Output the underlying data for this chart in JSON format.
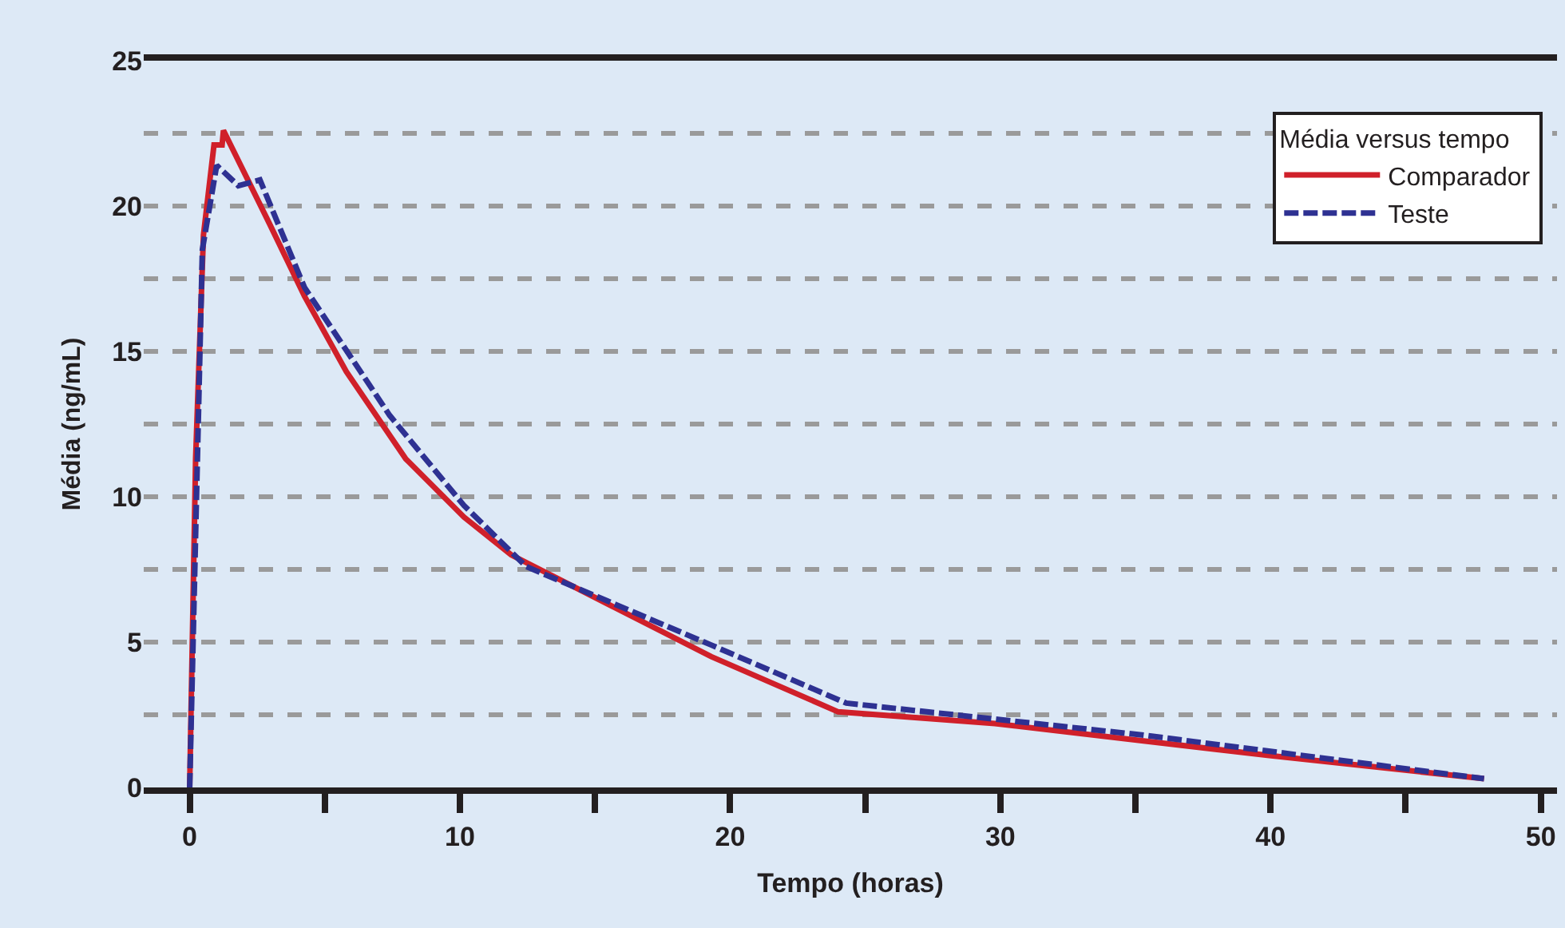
{
  "chart_data": {
    "type": "line",
    "xlabel": "Tempo (horas)",
    "ylabel": "Média (ng/mL)",
    "legend_title": "Média versus tempo",
    "legend": "top right",
    "grid": "y",
    "marker": "none",
    "xlim": [
      -1.7,
      50.6
    ],
    "ylim": [
      0,
      25
    ],
    "xticks": [
      0,
      {
        "value": 5,
        "label": null
      },
      10,
      {
        "value": 15,
        "label": null
      },
      20,
      {
        "value": 25,
        "label": null
      },
      30,
      {
        "value": 35,
        "label": null
      },
      40,
      {
        "value": 45,
        "label": null
      },
      50
    ],
    "yticks": [
      0,
      {
        "value": 2.5,
        "label": null
      },
      5,
      {
        "value": 7.5,
        "label": null
      },
      10,
      {
        "value": 12.5,
        "label": null
      },
      15,
      {
        "value": 17.5,
        "label": null
      },
      20,
      {
        "value": 22.5,
        "label": null
      },
      25
    ],
    "series": [
      {
        "name": "Comparador",
        "color": "#d0202a",
        "line_style": "solid",
        "x": [
          0,
          0.22,
          0.51,
          0.9,
          1.2,
          1.25,
          2.95,
          4.25,
          5.8,
          8.0,
          10.15,
          11.9,
          19.3,
          24.0,
          29.8,
          35.3,
          39.95,
          47.9
        ],
        "values": [
          0,
          11.3,
          19.0,
          22.1,
          22.1,
          22.6,
          19.4,
          16.9,
          14.3,
          11.3,
          9.3,
          8.0,
          4.5,
          2.6,
          2.2,
          1.6,
          1.1,
          0.3
        ]
      },
      {
        "name": "Teste",
        "color": "#2e3192",
        "line_style": "dashed",
        "x": [
          0,
          0.47,
          1.0,
          1.8,
          2.6,
          4.25,
          7.4,
          10.15,
          12.45,
          19.3,
          24.3,
          35.3,
          47.9
        ],
        "values": [
          0,
          18.5,
          21.4,
          20.7,
          20.9,
          17.2,
          12.8,
          9.7,
          7.6,
          4.9,
          2.9,
          1.8,
          0.3
        ]
      }
    ]
  }
}
